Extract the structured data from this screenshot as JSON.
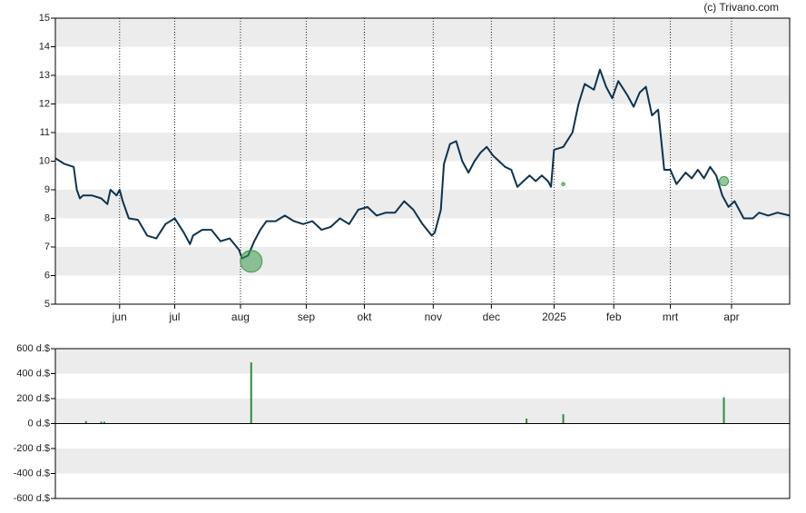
{
  "credit": "(c) Trivano.com",
  "chart_data": [
    {
      "type": "line",
      "color": "#0d3350",
      "x": [
        0,
        3,
        6,
        7,
        8,
        9,
        12,
        15,
        17,
        18,
        20,
        21,
        22,
        24,
        27,
        30,
        33,
        36,
        39,
        42,
        44,
        45,
        48,
        51,
        54,
        57,
        60,
        61,
        63,
        65,
        67,
        69,
        72,
        75,
        78,
        81,
        84,
        87,
        90,
        93,
        96,
        99,
        102,
        105,
        108,
        111,
        114,
        117,
        120,
        123,
        124,
        126,
        127,
        129,
        131,
        133,
        135,
        137,
        139,
        141,
        143,
        145,
        147,
        149,
        151,
        153,
        155,
        157,
        159,
        161,
        162,
        163,
        166,
        169,
        171,
        173,
        176,
        178,
        180,
        182,
        184,
        187,
        189,
        191,
        193,
        195,
        197,
        199,
        201,
        203,
        206,
        208,
        210,
        212,
        214,
        216,
        218,
        220,
        222,
        225,
        228,
        230,
        233,
        236,
        240
      ],
      "values": [
        10.1,
        9.9,
        9.8,
        9.0,
        8.7,
        8.8,
        8.8,
        8.7,
        8.5,
        9.0,
        8.8,
        9.0,
        8.6,
        8.0,
        7.95,
        7.4,
        7.3,
        7.8,
        8.0,
        7.5,
        7.1,
        7.4,
        7.6,
        7.6,
        7.2,
        7.3,
        6.9,
        6.6,
        6.7,
        7.2,
        7.6,
        7.9,
        7.9,
        8.1,
        7.9,
        7.8,
        7.9,
        7.6,
        7.7,
        8.0,
        7.8,
        8.3,
        8.4,
        8.1,
        8.2,
        8.2,
        8.6,
        8.3,
        7.8,
        7.4,
        7.5,
        8.3,
        9.9,
        10.6,
        10.7,
        10.0,
        9.6,
        10.0,
        10.3,
        10.5,
        10.2,
        10.0,
        9.8,
        9.7,
        9.1,
        9.3,
        9.5,
        9.3,
        9.5,
        9.3,
        9.1,
        10.4,
        10.5,
        11.0,
        12.0,
        12.7,
        12.5,
        13.2,
        12.6,
        12.2,
        12.8,
        12.3,
        11.9,
        12.4,
        12.6,
        11.6,
        11.8,
        9.7,
        9.7,
        9.2,
        9.6,
        9.4,
        9.7,
        9.4,
        9.8,
        9.5,
        8.8,
        8.4,
        8.6,
        8.0,
        8.0,
        8.2,
        8.1,
        8.2,
        8.1
      ],
      "markers": [
        {
          "x": 64,
          "value": 6.5,
          "size": 480
        },
        {
          "x": 166,
          "value": 9.2,
          "size": 70
        },
        {
          "x": 218.5,
          "value": 9.3,
          "size": 200
        }
      ],
      "marker_color": "#3a9a4a",
      "xlim": [
        0,
        240
      ],
      "xticks": [
        {
          "value": 21,
          "label": "jun"
        },
        {
          "value": 39,
          "label": "jul"
        },
        {
          "value": 60.5,
          "label": "aug"
        },
        {
          "value": 82,
          "label": "sep"
        },
        {
          "value": 101,
          "label": "okt"
        },
        {
          "value": 123.5,
          "label": "nov"
        },
        {
          "value": 142.5,
          "label": "dec"
        },
        {
          "value": 163,
          "label": "2025"
        },
        {
          "value": 182.5,
          "label": "feb"
        },
        {
          "value": 201,
          "label": "mrt"
        },
        {
          "value": 221,
          "label": "apr"
        }
      ],
      "ylim": [
        5,
        15
      ],
      "yticks": [
        5,
        6,
        7,
        8,
        9,
        10,
        11,
        12,
        13,
        14,
        15
      ]
    },
    {
      "type": "bar",
      "color": "#2e8b3e",
      "x": [
        10,
        15,
        16,
        64,
        154,
        166,
        218.5
      ],
      "values": [
        20,
        15,
        15,
        490,
        40,
        75,
        210
      ],
      "xlim": [
        0,
        240
      ],
      "ylim": [
        -600,
        600
      ],
      "yticks": [
        {
          "value": -600,
          "label": "-600 d.$"
        },
        {
          "value": -400,
          "label": "-400 d.$"
        },
        {
          "value": -200,
          "label": "-200 d.$"
        },
        {
          "value": 0,
          "label": "0 d.$"
        },
        {
          "value": 200,
          "label": "200 d.$"
        },
        {
          "value": 400,
          "label": "400 d.$"
        },
        {
          "value": 600,
          "label": "600 d.$"
        }
      ]
    }
  ]
}
